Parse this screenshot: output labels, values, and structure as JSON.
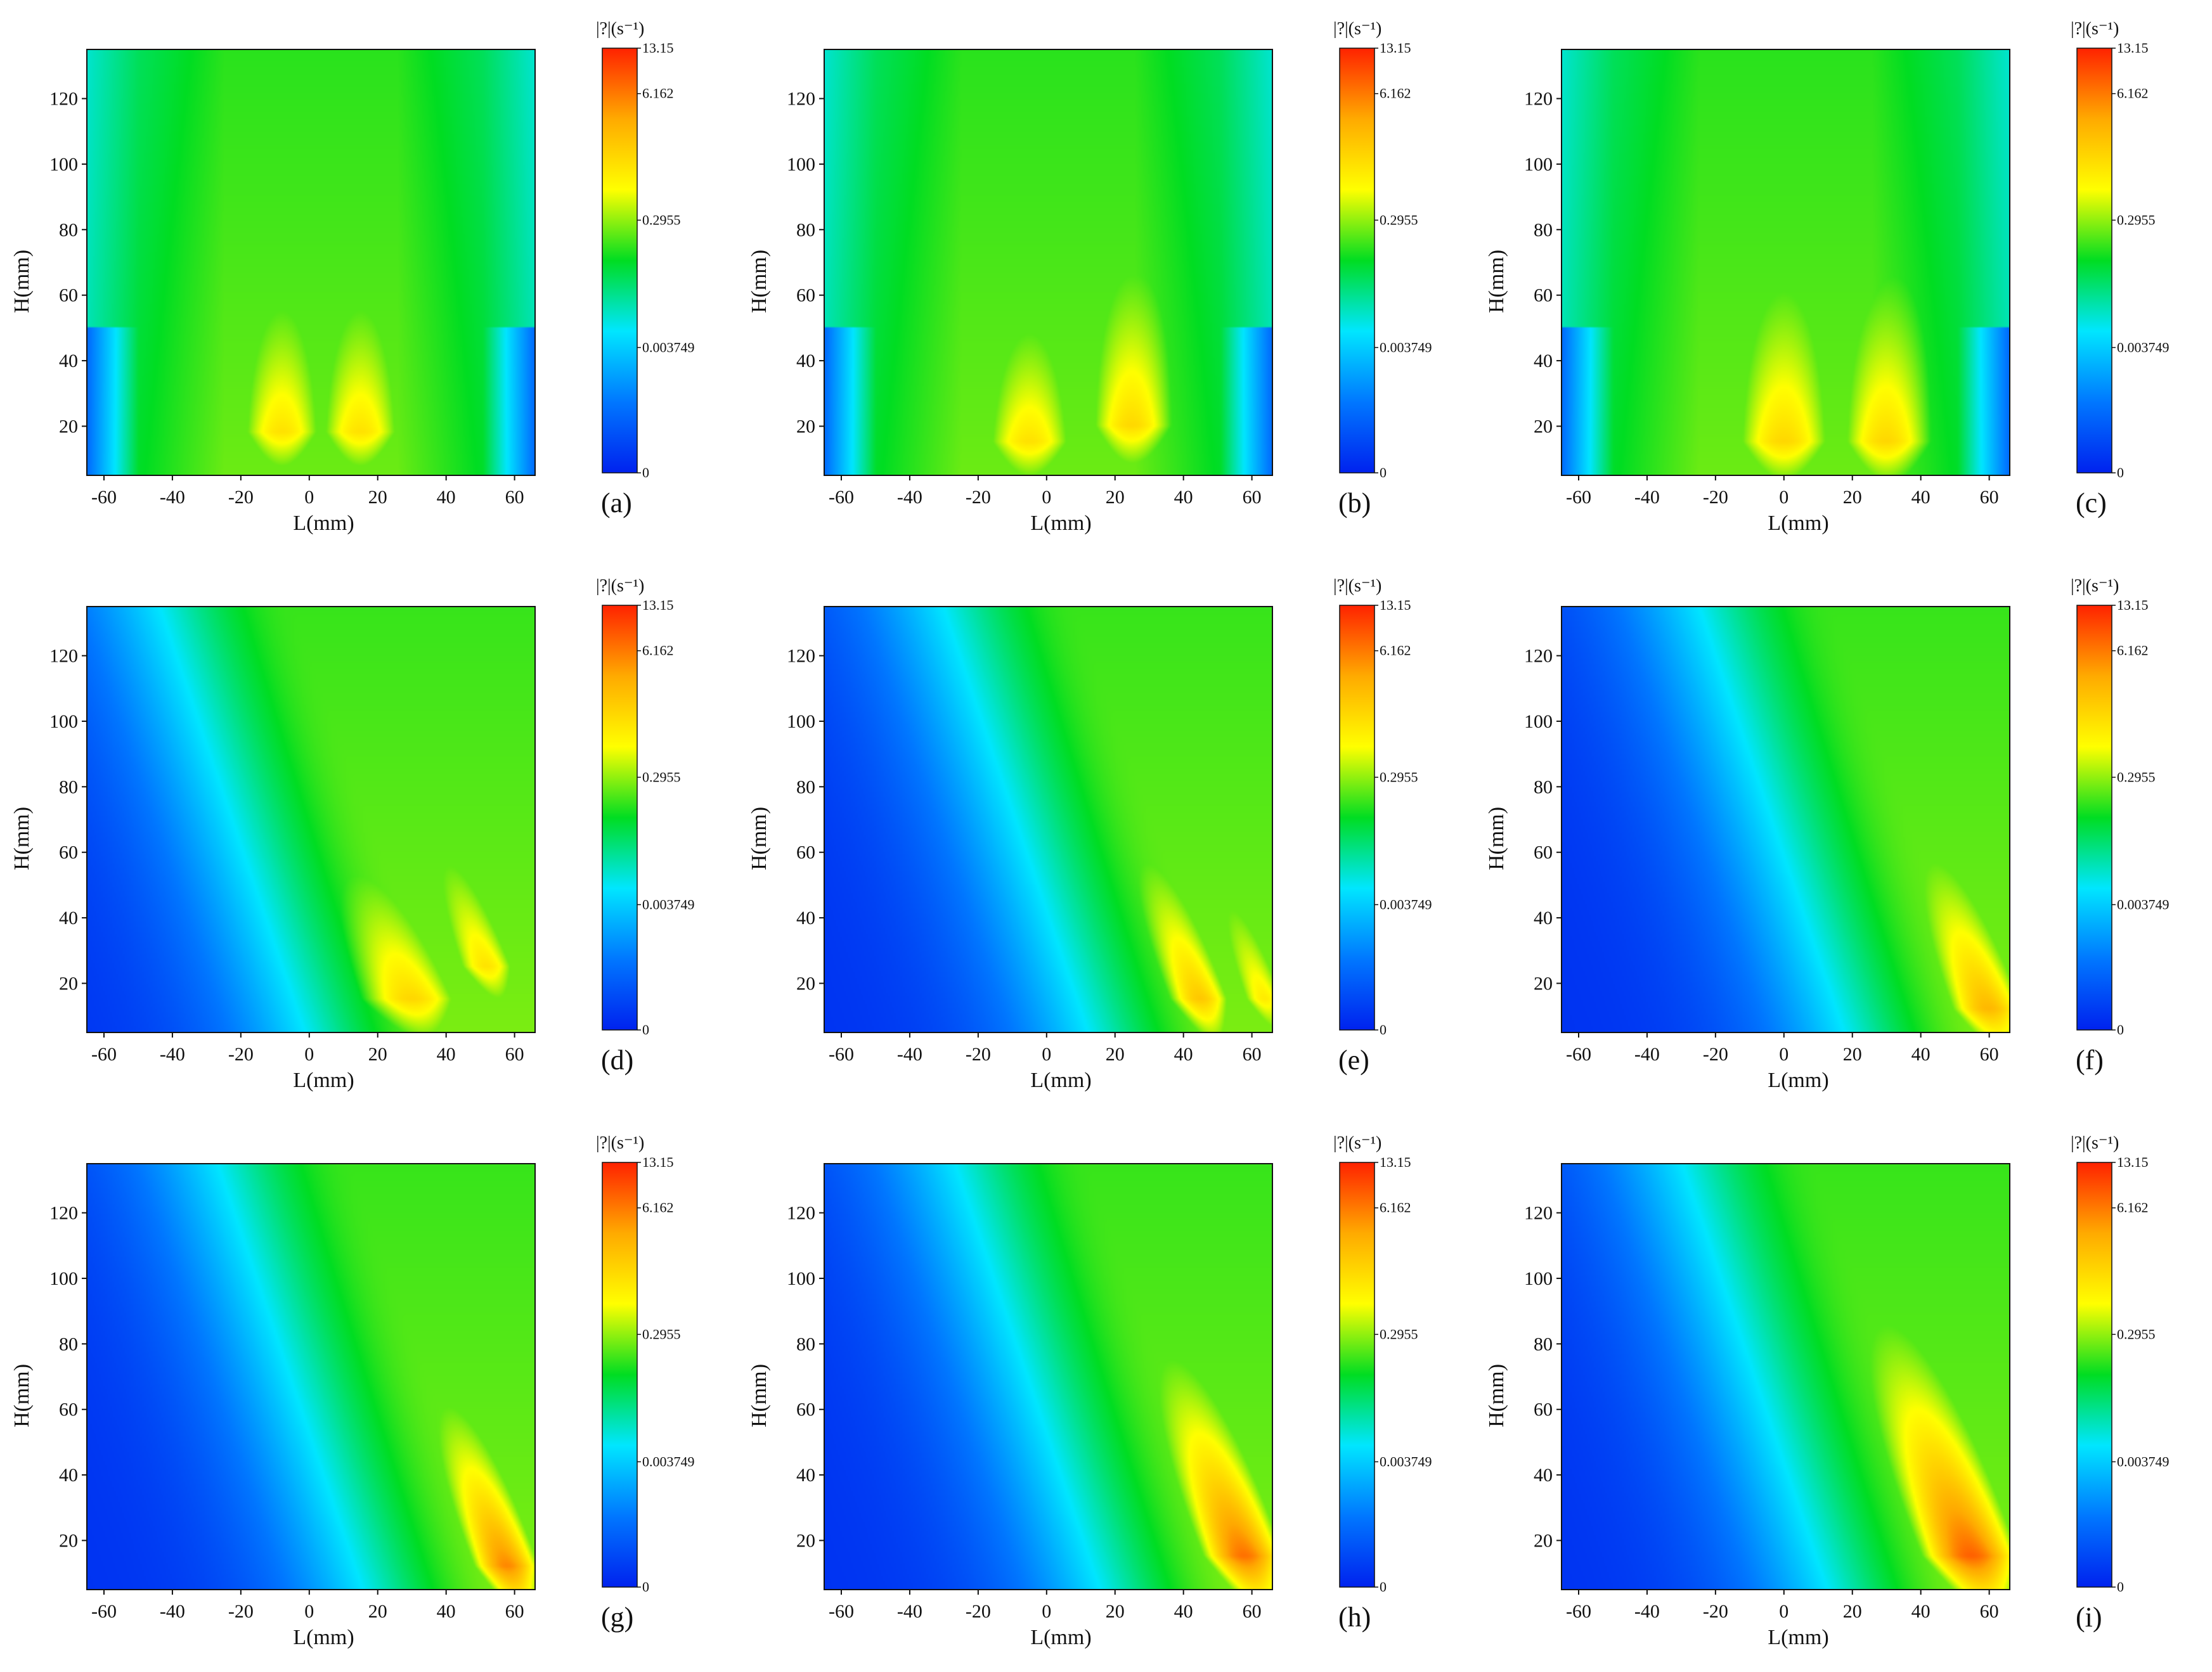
{
  "colors": {
    "colormap": [
      "#0022ee",
      "#0077ff",
      "#00e6ff",
      "#00dd22",
      "#ffff00",
      "#ffaa00",
      "#ff2200"
    ],
    "axis": "#111111",
    "background": "#ffffff"
  },
  "chart_data": [
    {
      "type": "heatmap",
      "panel_label": "(a)",
      "xlabel": "L(mm)",
      "ylabel": "H(mm)",
      "xlim": [
        -65,
        66
      ],
      "ylim": [
        5,
        135
      ],
      "xticks": [
        "-60",
        "-40",
        "-20",
        "0",
        "20",
        "40",
        "60"
      ],
      "yticks": [
        "20",
        "40",
        "60",
        "80",
        "100",
        "120"
      ],
      "colorbar": {
        "title": "|?|(s⁻¹)",
        "ticks": [
          "13.15",
          "6.162",
          "0.2955",
          "0.003749",
          "0"
        ]
      },
      "hotspots": [
        {
          "L": -8,
          "H": 18,
          "level": 0.7,
          "sx": 14,
          "sy": 45
        },
        {
          "L": 15,
          "H": 18,
          "level": 0.7,
          "sx": 14,
          "sy": 45
        }
      ]
    },
    {
      "type": "heatmap",
      "panel_label": "(b)",
      "xlabel": "L(mm)",
      "ylabel": "H(mm)",
      "xlim": [
        -65,
        66
      ],
      "ylim": [
        5,
        135
      ],
      "xticks": [
        "-60",
        "-40",
        "-20",
        "0",
        "20",
        "40",
        "60"
      ],
      "yticks": [
        "20",
        "40",
        "60",
        "80",
        "100",
        "120"
      ],
      "colorbar": {
        "title": "|?|(s⁻¹)",
        "ticks": [
          "13.15",
          "6.162",
          "0.2955",
          "0.003749",
          "0"
        ]
      },
      "hotspots": [
        {
          "L": -5,
          "H": 15,
          "level": 0.7,
          "sx": 15,
          "sy": 40
        },
        {
          "L": 25,
          "H": 20,
          "level": 0.72,
          "sx": 14,
          "sy": 50
        }
      ]
    },
    {
      "type": "heatmap",
      "panel_label": "(c)",
      "xlabel": "L(mm)",
      "ylabel": "H(mm)",
      "xlim": [
        -65,
        66
      ],
      "ylim": [
        5,
        135
      ],
      "xticks": [
        "-60",
        "-40",
        "-20",
        "0",
        "20",
        "40",
        "60"
      ],
      "yticks": [
        "20",
        "40",
        "60",
        "80",
        "100",
        "120"
      ],
      "colorbar": {
        "title": "|?|(s⁻¹)",
        "ticks": [
          "13.15",
          "6.162",
          "0.2955",
          "0.003749",
          "0"
        ]
      },
      "hotspots": [
        {
          "L": 0,
          "H": 15,
          "level": 0.72,
          "sx": 16,
          "sy": 50
        },
        {
          "L": 30,
          "H": 15,
          "level": 0.72,
          "sx": 15,
          "sy": 50
        }
      ]
    },
    {
      "type": "heatmap",
      "panel_label": "(d)",
      "xlabel": "L(mm)",
      "ylabel": "H(mm)",
      "xlim": [
        -65,
        66
      ],
      "ylim": [
        5,
        135
      ],
      "xticks": [
        "-60",
        "-40",
        "-20",
        "0",
        "20",
        "40",
        "60"
      ],
      "yticks": [
        "20",
        "40",
        "60",
        "80",
        "100",
        "120"
      ],
      "colorbar": {
        "title": "|?|(s⁻¹)",
        "ticks": [
          "13.15",
          "6.162",
          "0.2955",
          "0.003749",
          "0"
        ]
      },
      "hotspots": [
        {
          "L": 30,
          "H": 15,
          "level": 0.72,
          "sx": 16,
          "sy": 40
        },
        {
          "L": 52,
          "H": 25,
          "level": 0.7,
          "sx": 10,
          "sy": 40
        }
      ]
    },
    {
      "type": "heatmap",
      "panel_label": "(e)",
      "xlabel": "L(mm)",
      "ylabel": "H(mm)",
      "xlim": [
        -65,
        66
      ],
      "ylim": [
        5,
        135
      ],
      "xticks": [
        "-60",
        "-40",
        "-20",
        "0",
        "20",
        "40",
        "60"
      ],
      "yticks": [
        "20",
        "40",
        "60",
        "80",
        "100",
        "120"
      ],
      "colorbar": {
        "title": "|?|(s⁻¹)",
        "ticks": [
          "13.15",
          "6.162",
          "0.2955",
          "0.003749",
          "0"
        ]
      },
      "hotspots": [
        {
          "L": 45,
          "H": 15,
          "level": 0.75,
          "sx": 10,
          "sy": 40
        },
        {
          "L": 64,
          "H": 15,
          "level": 0.68,
          "sx": 8,
          "sy": 40
        }
      ]
    },
    {
      "type": "heatmap",
      "panel_label": "(f)",
      "xlabel": "L(mm)",
      "ylabel": "H(mm)",
      "xlim": [
        -65,
        66
      ],
      "ylim": [
        5,
        135
      ],
      "xticks": [
        "-60",
        "-40",
        "-20",
        "0",
        "20",
        "40",
        "60"
      ],
      "yticks": [
        "20",
        "40",
        "60",
        "80",
        "100",
        "120"
      ],
      "colorbar": {
        "title": "|?|(s⁻¹)",
        "ticks": [
          "13.15",
          "6.162",
          "0.2955",
          "0.003749",
          "0"
        ]
      },
      "hotspots": [
        {
          "L": 60,
          "H": 12,
          "level": 0.78,
          "sx": 12,
          "sy": 40
        }
      ]
    },
    {
      "type": "heatmap",
      "panel_label": "(g)",
      "xlabel": "L(mm)",
      "ylabel": "H(mm)",
      "xlim": [
        -65,
        66
      ],
      "ylim": [
        5,
        135
      ],
      "xticks": [
        "-60",
        "-40",
        "-20",
        "0",
        "20",
        "40",
        "60"
      ],
      "yticks": [
        "20",
        "40",
        "60",
        "80",
        "100",
        "120"
      ],
      "colorbar": {
        "title": "|?|(s⁻¹)",
        "ticks": [
          "13.15",
          "6.162",
          "0.2955",
          "0.003749",
          "0"
        ]
      },
      "hotspots": [
        {
          "L": 58,
          "H": 12,
          "level": 0.85,
          "sx": 10,
          "sy": 35
        }
      ]
    },
    {
      "type": "heatmap",
      "panel_label": "(h)",
      "xlabel": "L(mm)",
      "ylabel": "H(mm)",
      "xlim": [
        -65,
        66
      ],
      "ylim": [
        5,
        135
      ],
      "xticks": [
        "-60",
        "-40",
        "-20",
        "0",
        "20",
        "40",
        "60"
      ],
      "yticks": [
        "20",
        "40",
        "60",
        "80",
        "100",
        "120"
      ],
      "colorbar": {
        "title": "|?|(s⁻¹)",
        "ticks": [
          "13.15",
          "6.162",
          "0.2955",
          "0.003749",
          "0"
        ]
      },
      "hotspots": [
        {
          "L": 58,
          "H": 15,
          "level": 0.88,
          "sx": 12,
          "sy": 40
        }
      ]
    },
    {
      "type": "heatmap",
      "panel_label": "(i)",
      "xlabel": "L(mm)",
      "ylabel": "H(mm)",
      "xlim": [
        -65,
        66
      ],
      "ylim": [
        5,
        135
      ],
      "xticks": [
        "-60",
        "-40",
        "-20",
        "0",
        "20",
        "40",
        "60"
      ],
      "yticks": [
        "20",
        "40",
        "60",
        "80",
        "100",
        "120"
      ],
      "colorbar": {
        "title": "|?|(s⁻¹)",
        "ticks": [
          "13.15",
          "6.162",
          "0.2955",
          "0.003749",
          "0"
        ]
      },
      "hotspots": [
        {
          "L": 55,
          "H": 15,
          "level": 0.9,
          "sx": 14,
          "sy": 45
        }
      ]
    }
  ]
}
